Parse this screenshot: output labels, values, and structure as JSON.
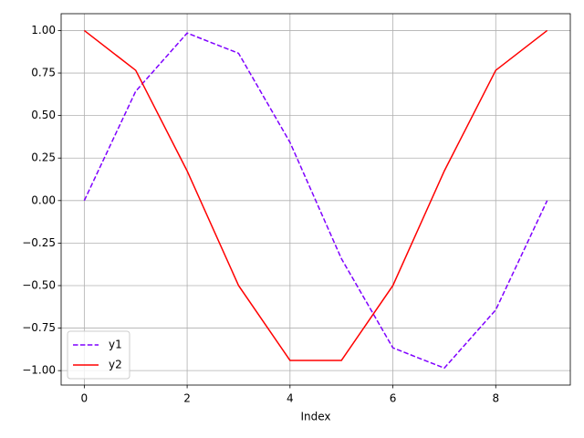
{
  "chart_data": {
    "type": "line",
    "x_label": "Index",
    "x": [
      0,
      1,
      2,
      3,
      4,
      5,
      6,
      7,
      8,
      9
    ],
    "series": [
      {
        "name": "y1",
        "color": "#7f00ff",
        "dash": true,
        "values": [
          0.0,
          0.643,
          0.985,
          0.866,
          0.342,
          -0.342,
          -0.866,
          -0.985,
          -0.643,
          0.0
        ]
      },
      {
        "name": "y2",
        "color": "#ff0000",
        "dash": false,
        "values": [
          1.0,
          0.766,
          0.174,
          -0.5,
          -0.94,
          -0.94,
          -0.5,
          0.174,
          0.766,
          1.0
        ]
      }
    ],
    "xlim": [
      -0.45,
      9.45
    ],
    "ylim": [
      -1.085,
      1.099
    ],
    "xticks": [
      0,
      2,
      4,
      6,
      8
    ],
    "yticks": [
      {
        "value": -1,
        "label": "−1.00"
      },
      {
        "value": -0.75,
        "label": "−0.75"
      },
      {
        "value": -0.5,
        "label": "−0.50"
      },
      {
        "value": -0.25,
        "label": "−0.25"
      },
      {
        "value": 0,
        "label": "0.00"
      },
      {
        "value": 0.25,
        "label": "0.25"
      },
      {
        "value": 0.5,
        "label": "0.50"
      },
      {
        "value": 0.75,
        "label": "0.75"
      },
      {
        "value": 1,
        "label": "1.00"
      }
    ],
    "grid": true,
    "legend": "lower left"
  }
}
